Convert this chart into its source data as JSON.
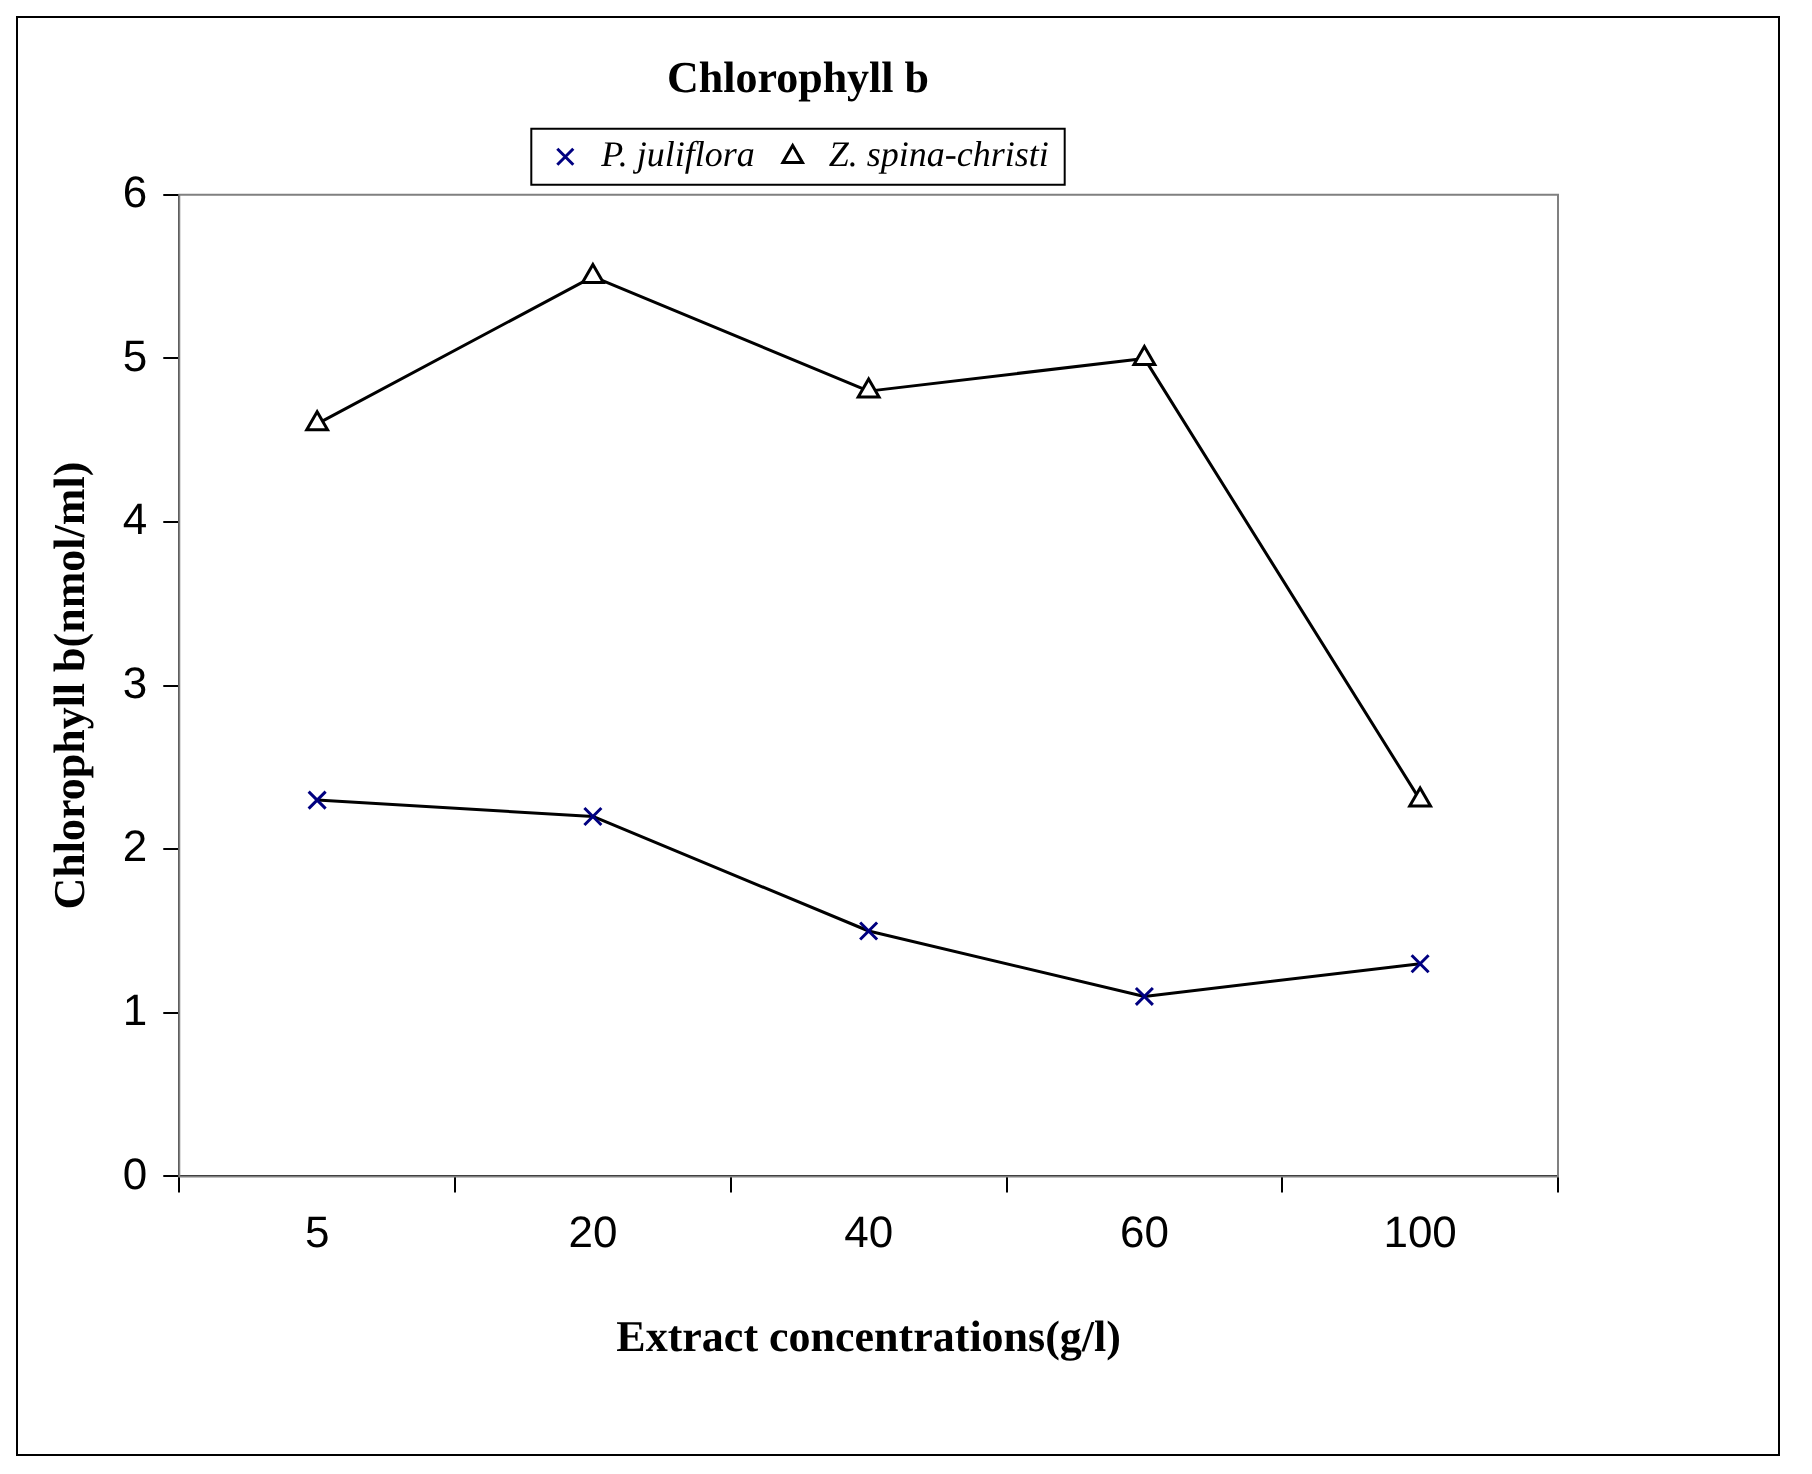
{
  "chart_data": {
    "type": "line",
    "title": "Chlorophyll b",
    "xlabel": "Extract concentrations(g/l)",
    "ylabel": "Chlorophyll b(nmol/ml)",
    "categories": [
      "5",
      "20",
      "40",
      "60",
      "100"
    ],
    "series": [
      {
        "name": "P. juliflora",
        "color": "#000080",
        "marker": "cross",
        "values": [
          2.3,
          2.2,
          1.5,
          1.1,
          1.3
        ]
      },
      {
        "name": "Z. spina-christi",
        "color": "#000000",
        "marker": "triangle",
        "values": [
          4.6,
          5.5,
          4.8,
          5.0,
          2.3
        ]
      }
    ],
    "ylim": [
      0,
      6
    ],
    "yticks": [
      0,
      1,
      2,
      3,
      4,
      5,
      6
    ],
    "grid": false,
    "legend": "top",
    "line_style": "solid"
  }
}
